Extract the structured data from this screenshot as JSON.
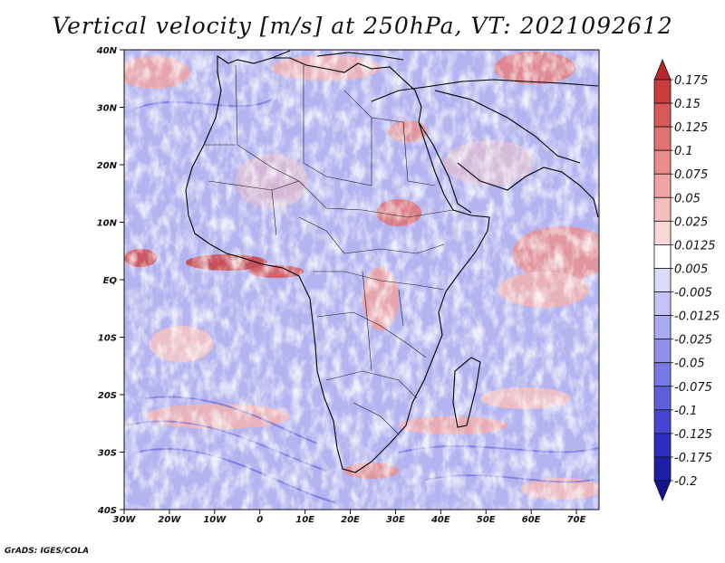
{
  "title": "Vertical velocity [m/s] at 250hPa, VT: 2021092612",
  "credit": "GrADS: IGES/COLA",
  "axes": {
    "lat_labels": [
      "40N",
      "30N",
      "20N",
      "10N",
      "EQ",
      "10S",
      "20S",
      "30S",
      "40S"
    ],
    "lon_labels": [
      "30W",
      "20W",
      "10W",
      "0",
      "10E",
      "20E",
      "30E",
      "40E",
      "50E",
      "60E",
      "70E"
    ]
  },
  "colorbar": {
    "levels": [
      "0.175",
      "0.15",
      "0.125",
      "0.1",
      "0.075",
      "0.05",
      "0.025",
      "0.0125",
      "0.005",
      "-0.005",
      "-0.0125",
      "-0.025",
      "-0.05",
      "-0.075",
      "-0.1",
      "-0.125",
      "-0.175",
      "-0.2"
    ],
    "colors": [
      "#b4282d",
      "#c83c3c",
      "#d75a5a",
      "#e17373",
      "#ea8c8c",
      "#f0a5a5",
      "#f5bebe",
      "#fad7d7",
      "#ffffff",
      "#dcdcfa",
      "#c3c3f5",
      "#aaaaf0",
      "#9191eb",
      "#7878e6",
      "#5f5fdc",
      "#4646d2",
      "#2d2dbe",
      "#1e1ea5",
      "#14148c"
    ]
  },
  "map": {
    "region": "Africa",
    "variable": "Vertical velocity at 250hPa",
    "background_color": "#b4b4f0"
  }
}
